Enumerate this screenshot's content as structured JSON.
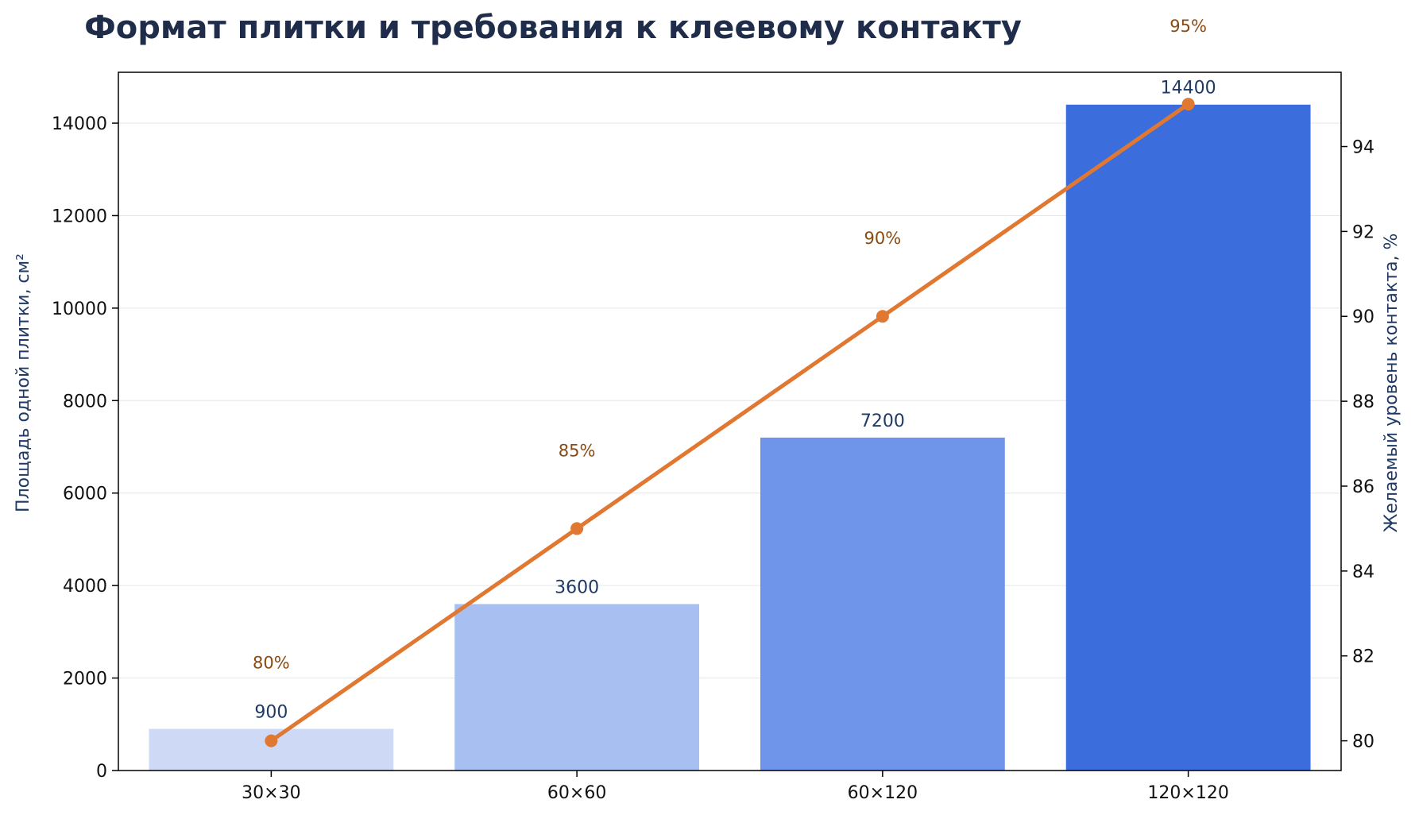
{
  "chart_data": {
    "type": "bar",
    "title": "Формат плитки и требования к клеевому контакту",
    "categories": [
      "30×30",
      "60×60",
      "60×120",
      "120×120"
    ],
    "series": [
      {
        "type": "bar",
        "axis": "left",
        "values": [
          900,
          3600,
          7200,
          14400
        ],
        "labels": [
          "900",
          "3600",
          "7200",
          "14400"
        ],
        "colors": [
          "#cdd9f5",
          "#a7c0f1",
          "#6f95eb",
          "#3c6ddc"
        ]
      },
      {
        "type": "line",
        "axis": "right",
        "values": [
          80,
          85,
          90,
          95
        ],
        "labels": [
          "80%",
          "85%",
          "90%",
          "95%"
        ],
        "color": "#e07832"
      }
    ],
    "ylabel": "Площадь одной плитки, см²",
    "y2label": "Желаемый уровень контакта, %",
    "ylim": [
      0,
      15100
    ],
    "y2lim": [
      79.3,
      95.75
    ],
    "yticks": [
      0,
      2000,
      4000,
      6000,
      8000,
      10000,
      12000,
      14000
    ],
    "ytick_labels": [
      "0",
      "2000",
      "4000",
      "6000",
      "8000",
      "10000",
      "12000",
      "14000"
    ],
    "y2ticks": [
      80,
      82,
      84,
      86,
      88,
      90,
      92,
      94
    ],
    "y2tick_labels": [
      "80",
      "82",
      "84",
      "86",
      "88",
      "90",
      "92",
      "94"
    ],
    "grid": true,
    "legend": "none"
  }
}
